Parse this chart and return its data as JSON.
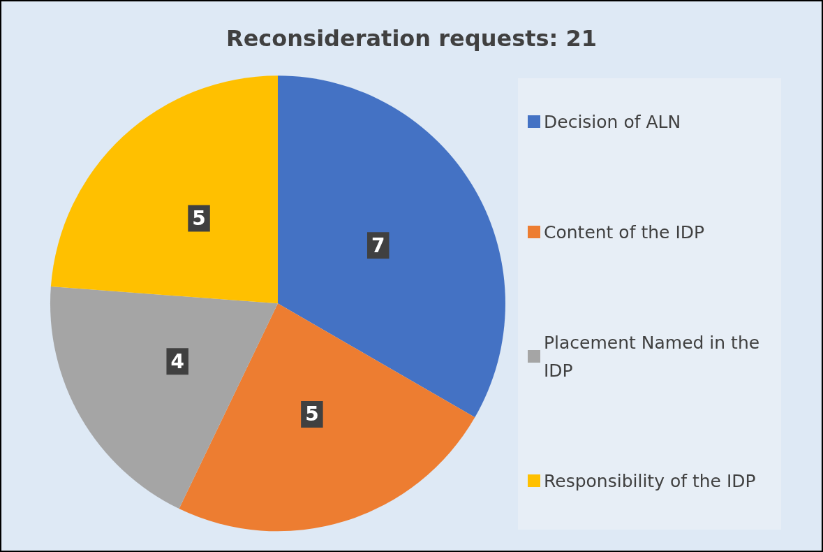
{
  "chart_data": {
    "type": "pie",
    "title": "Reconsideration requests: 21",
    "categories": [
      "Decision of ALN",
      "Content of the IDP",
      "Placement Named in the IDP",
      "Responsibility of the IDP"
    ],
    "values": [
      7,
      5,
      4,
      5
    ],
    "colors": [
      "#4472c4",
      "#ed7d31",
      "#a5a5a5",
      "#ffc000"
    ],
    "data_labels": true,
    "legend": "right"
  }
}
